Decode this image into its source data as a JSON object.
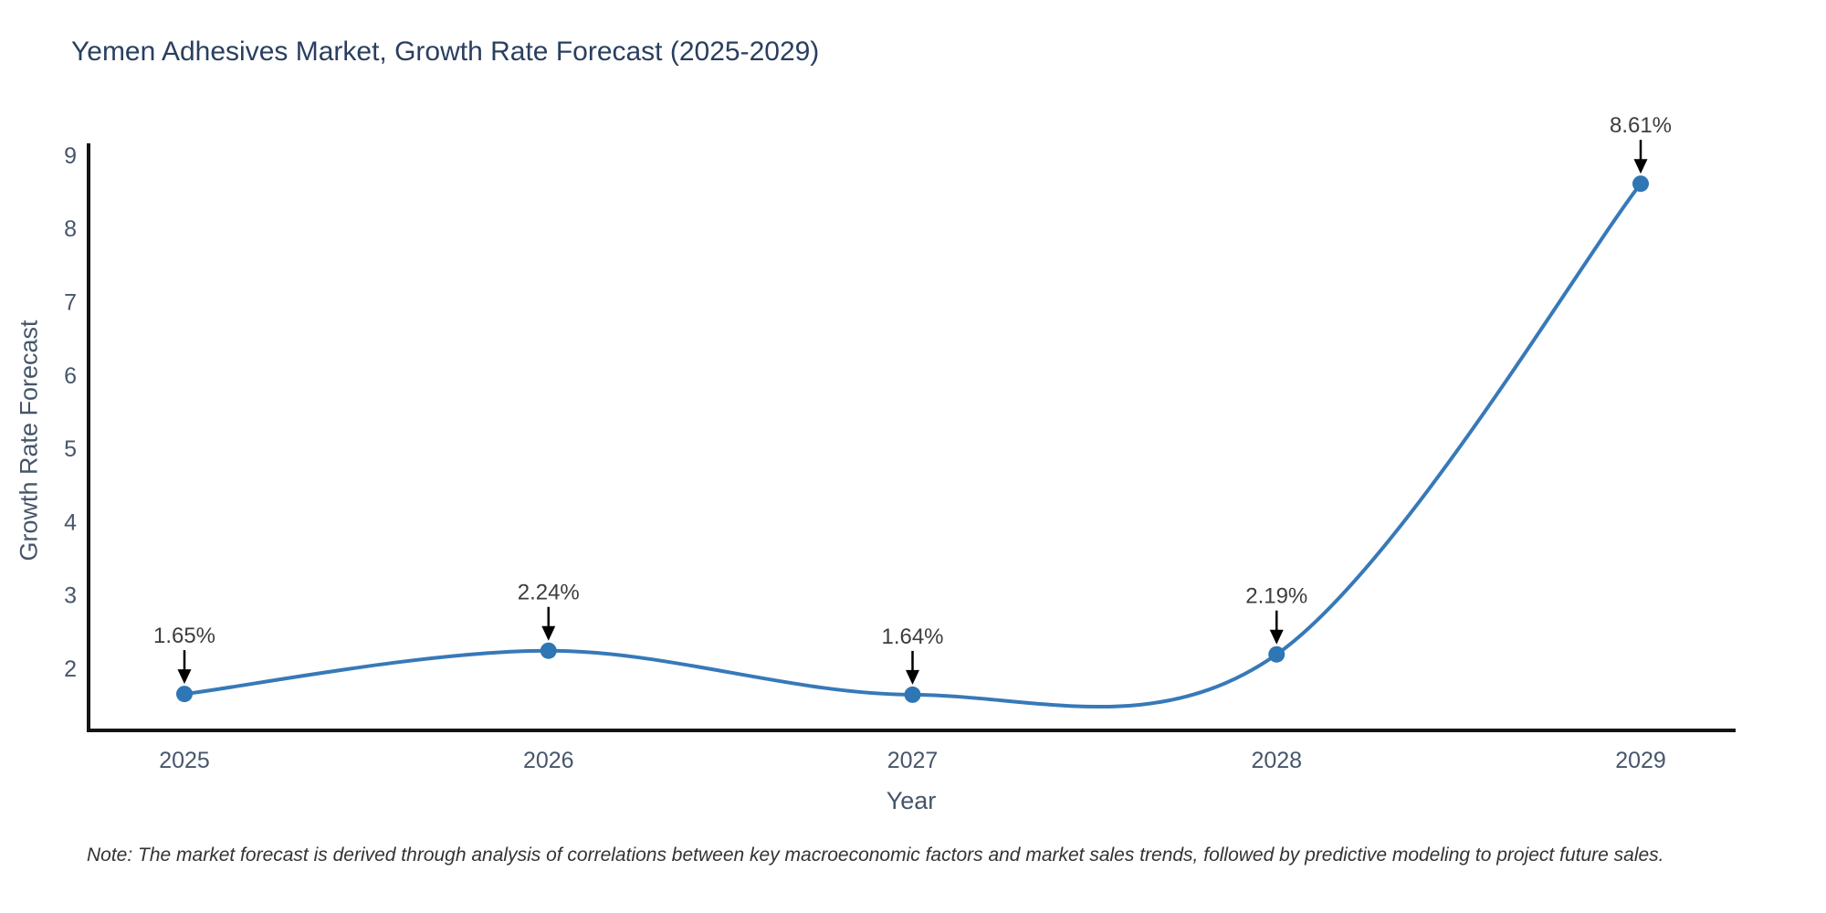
{
  "title": "Yemen Adhesives Market, Growth Rate Forecast (2025-2029)",
  "note": "Note: The market forecast is derived through analysis of correlations between key macroeconomic factors and market sales trends, followed by predictive modeling to project future sales.",
  "chart_data": {
    "type": "line",
    "title": "Yemen Adhesives Market, Growth Rate Forecast (2025-2029)",
    "xlabel": "Year",
    "ylabel": "Growth Rate Forecast",
    "categories": [
      "2025",
      "2026",
      "2027",
      "2028",
      "2029"
    ],
    "values": [
      1.65,
      2.24,
      1.64,
      2.19,
      8.61
    ],
    "point_labels": [
      "1.65%",
      "2.24%",
      "1.64%",
      "2.19%",
      "8.61%"
    ],
    "yticks": [
      2,
      3,
      4,
      5,
      6,
      7,
      8,
      9
    ],
    "ylim": [
      1.15,
      9.15
    ],
    "line_shape": "spline",
    "grid": false,
    "legend": "none",
    "colors": {
      "line": "#3779b8",
      "marker": "#2f76b5",
      "axis": "#141414",
      "arrow": "#000000",
      "title": "#2a3f5f",
      "tick": "#47566b",
      "annotation": "#3d3d3d",
      "note": "#333333",
      "background": "#ffffff"
    }
  }
}
